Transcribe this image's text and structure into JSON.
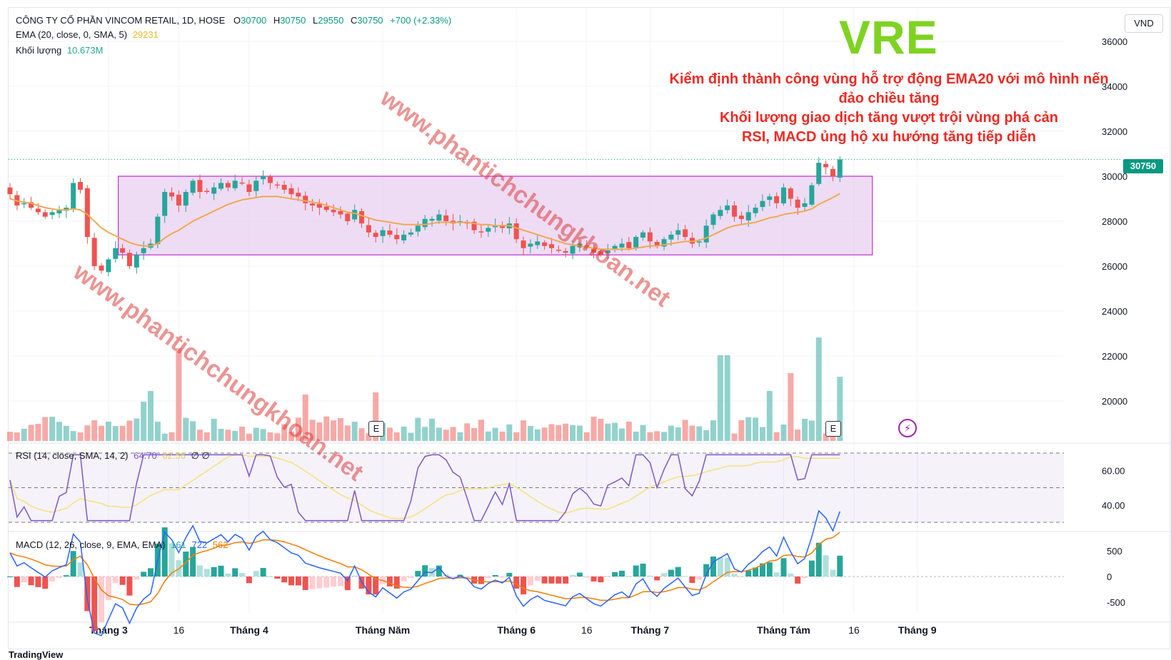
{
  "header": {
    "symbol_title": "CÔNG TY CỔ PHẦN VINCOM RETAIL, 1D, HOSE",
    "open_label": "O",
    "open": "30700",
    "high_label": "H",
    "high": "30750",
    "low_label": "L",
    "low": "29550",
    "close_label": "C",
    "close": "30750",
    "change": "+700 (+2.33%)",
    "ema_label": "EMA (20, close, 0, SMA, 5)",
    "ema_value": "29231",
    "volume_label": "Khối lượng",
    "volume_value": "10.673M",
    "rsi_label": "RSI (14, close, SMA, 14, 2)",
    "rsi_value": "64.70",
    "rsi_ma_value": "62.56",
    "rsi_extra": "∅ ∅",
    "macd_label": "MACD (12, 26, close, 9, EMA, EMA)",
    "macd_hist": "161",
    "macd_line": "722",
    "macd_signal": "562",
    "currency": "VND",
    "last_price_tag": "30750"
  },
  "annotations": {
    "ticker": "VRE",
    "line1": "Kiểm định thành công vùng hỗ trợ động EMA20 với mô hình nến",
    "line2": "đảo chiều tăng",
    "line3": "Khối lượng giao dịch tăng vượt trội vùng phá cản",
    "line4": "RSI, MACD ủng hộ xu hướng tăng tiếp diễn",
    "watermark": "www.phantichchungkhoan.net",
    "earnings_badge": "E",
    "footer_logo": "TradingView"
  },
  "colors": {
    "up": "#26a69a",
    "down": "#ef5350",
    "ema": "#f0a850",
    "rsi": "#7e57c2",
    "rsi_ma": "#f5e27a",
    "macd": "#2962ff",
    "signal": "#f57c00",
    "zone_fill": "#e8d0f0",
    "zone_stroke": "#c040d0",
    "annotation": "#ee2a24",
    "ticker": "#7ed321"
  },
  "chart_data": {
    "type": "candlestick",
    "price_axis_ticks": [
      "36000",
      "34000",
      "32000",
      "30000",
      "28000",
      "26000",
      "24000",
      "22000",
      "20000"
    ],
    "price_range": [
      19000,
      36600
    ],
    "x_axis_labels": [
      {
        "index": 14,
        "label": "Tháng 3"
      },
      {
        "index": 24,
        "label": "16"
      },
      {
        "index": 34,
        "label": "Tháng 4"
      },
      {
        "index": 53,
        "label": "Tháng Năm"
      },
      {
        "index": 72,
        "label": "Tháng 6"
      },
      {
        "index": 82,
        "label": "16"
      },
      {
        "index": 91,
        "label": "Tháng 7"
      },
      {
        "index": 110,
        "label": "Tháng Tám"
      },
      {
        "index": 120,
        "label": "16"
      },
      {
        "index": 129,
        "label": "Tháng 9"
      }
    ],
    "support_zone": {
      "from_index": 16,
      "to_index": 122,
      "low": 26500,
      "high": 30000
    },
    "candles_close": [
      29200,
      28700,
      28800,
      28600,
      28400,
      28200,
      28400,
      28500,
      28600,
      29700,
      29400,
      27300,
      26000,
      25800,
      26300,
      26800,
      26600,
      26000,
      26500,
      26800,
      27000,
      28200,
      29300,
      29100,
      28700,
      29300,
      29800,
      29300,
      29300,
      29500,
      29700,
      29500,
      29800,
      29700,
      29300,
      29800,
      30000,
      29700,
      29600,
      29400,
      29200,
      29100,
      28800,
      28700,
      28600,
      28500,
      28400,
      28300,
      28000,
      28500,
      27900,
      27500,
      27300,
      27600,
      27400,
      27200,
      27400,
      27500,
      27800,
      28100,
      28100,
      28300,
      28000,
      27900,
      28000,
      27900,
      27600,
      27500,
      27700,
      27800,
      27700,
      27900,
      27200,
      26800,
      27000,
      27100,
      26900,
      26800,
      26700,
      26600,
      26900,
      27000,
      26800,
      26600,
      26500,
      26700,
      26900,
      27000,
      26800,
      27300,
      27500,
      27100,
      26900,
      27200,
      27400,
      27600,
      27300,
      27000,
      27100,
      27800,
      28300,
      28500,
      28700,
      28200,
      28100,
      28400,
      28600,
      28900,
      29100,
      28800,
      29500,
      29000,
      28600,
      28800,
      29600,
      30600,
      30400,
      30000,
      30750
    ],
    "ema20": [
      29000,
      28900,
      28850,
      28800,
      28700,
      28600,
      28550,
      28500,
      28500,
      28550,
      28500,
      28300,
      28000,
      27700,
      27500,
      27350,
      27200,
      27050,
      26950,
      26900,
      26900,
      27000,
      27250,
      27450,
      27600,
      27800,
      28000,
      28150,
      28300,
      28450,
      28600,
      28750,
      28850,
      28950,
      29000,
      29050,
      29100,
      29100,
      29100,
      29050,
      29000,
      28950,
      28900,
      28850,
      28800,
      28700,
      28600,
      28500,
      28400,
      28350,
      28250,
      28150,
      28050,
      28000,
      27950,
      27900,
      27850,
      27850,
      27850,
      27850,
      27900,
      27950,
      27950,
      27950,
      27950,
      27950,
      27900,
      27850,
      27850,
      27800,
      27800,
      27800,
      27700,
      27600,
      27500,
      27400,
      27300,
      27200,
      27100,
      27000,
      26950,
      26900,
      26850,
      26800,
      26750,
      26750,
      26750,
      26750,
      26750,
      26800,
      26850,
      26900,
      26900,
      26950,
      27000,
      27050,
      27100,
      27100,
      27150,
      27250,
      27400,
      27550,
      27700,
      27800,
      27850,
      27900,
      27950,
      28050,
      28150,
      28200,
      28300,
      28350,
      28400,
      28450,
      28550,
      28750,
      28900,
      29050,
      29231
    ],
    "volume_scale_note": "relative",
    "rsi_levels": [
      "60.00",
      "40.00"
    ],
    "macd_levels": [
      "500",
      "0",
      "-500"
    ]
  }
}
